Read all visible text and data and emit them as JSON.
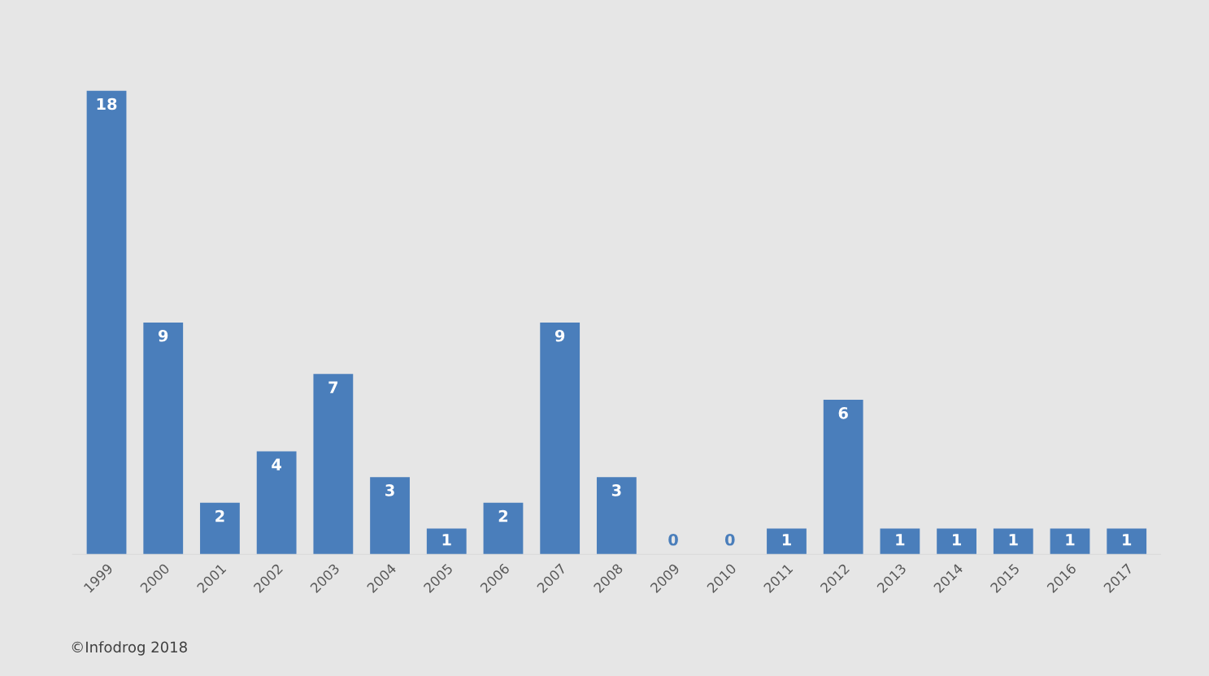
{
  "chart_data": {
    "type": "bar",
    "categories": [
      "1999",
      "2000",
      "2001",
      "2002",
      "2003",
      "2004",
      "2005",
      "2006",
      "2007",
      "2008",
      "2009",
      "2010",
      "2011",
      "2012",
      "2013",
      "2014",
      "2015",
      "2016",
      "2017"
    ],
    "values": [
      18,
      9,
      2,
      4,
      7,
      3,
      1,
      2,
      9,
      3,
      0,
      0,
      1,
      6,
      1,
      1,
      1,
      1,
      1
    ],
    "color": "#4a7ebb",
    "data_labels": true,
    "tick_labels": "x",
    "grid": false,
    "legend": false,
    "annotations": [
      "©Infodrog 2018"
    ]
  }
}
